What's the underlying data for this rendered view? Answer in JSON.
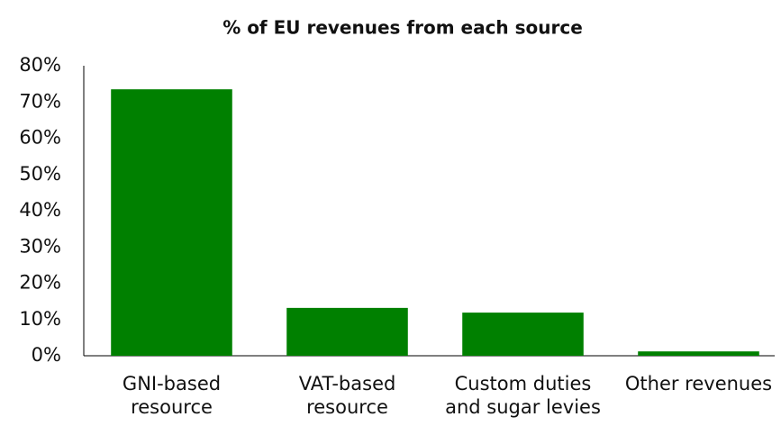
{
  "chart_data": {
    "type": "bar",
    "title": "% of EU revenues from each source",
    "categories": [
      "GNI-based resource",
      "VAT-based resource",
      "Custom duties and sugar levies",
      "Other revenues"
    ],
    "values": [
      73.5,
      13.2,
      11.9,
      1.2
    ],
    "color": "#008000",
    "ylim": [
      0,
      80
    ],
    "yticks": [
      {
        "value": 0,
        "label": "0%"
      },
      {
        "value": 10,
        "label": "10%"
      },
      {
        "value": 20,
        "label": "20%"
      },
      {
        "value": 30,
        "label": "30%"
      },
      {
        "value": 40,
        "label": "40%"
      },
      {
        "value": 50,
        "label": "50%"
      },
      {
        "value": 60,
        "label": "60%"
      },
      {
        "value": 70,
        "label": "70%"
      },
      {
        "value": 80,
        "label": "80%"
      }
    ],
    "grid": false
  }
}
